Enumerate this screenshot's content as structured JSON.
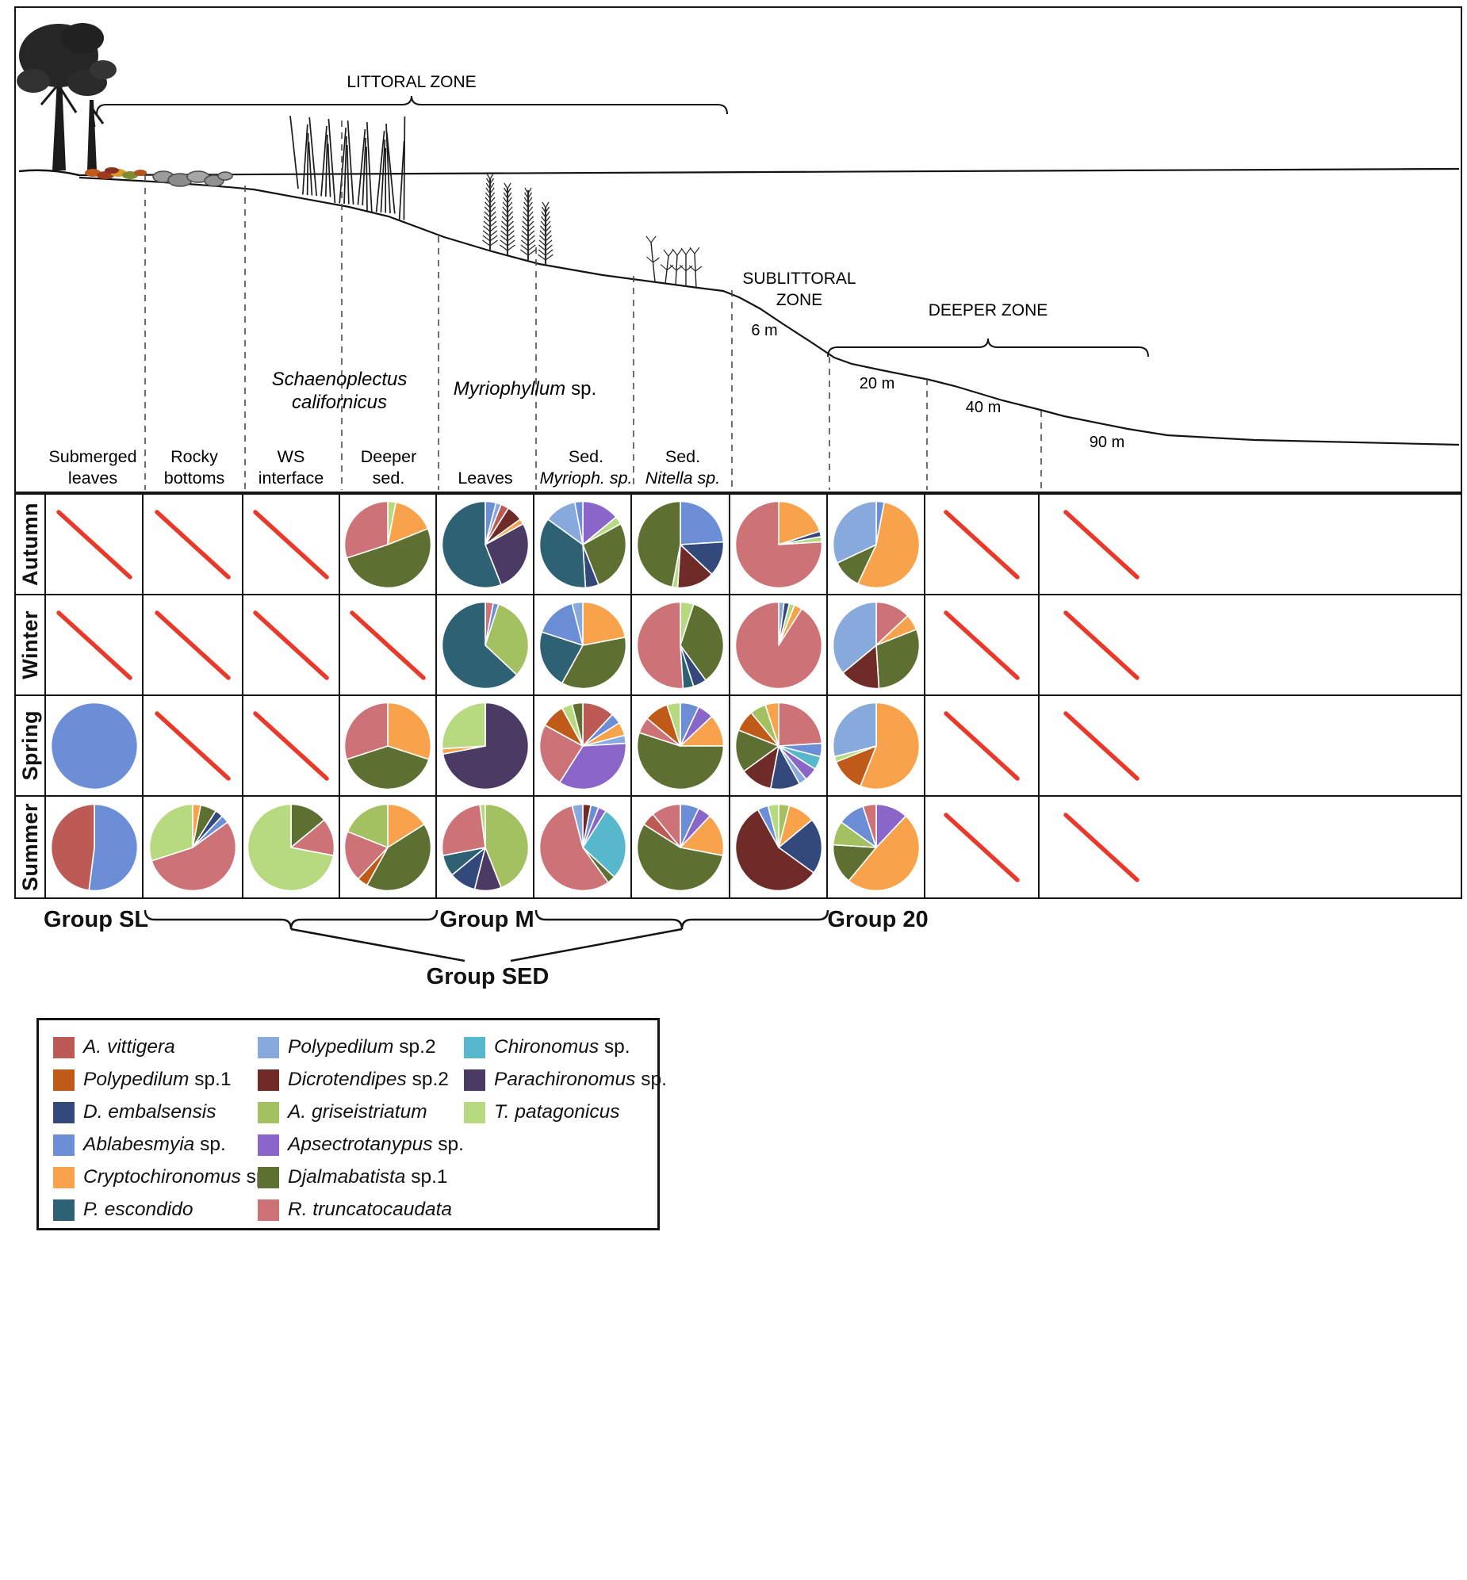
{
  "diagram": {
    "zones": {
      "littoral": "LITTORAL ZONE",
      "sublittoral_1": "SUBLITTORAL",
      "sublittoral_2": "ZONE",
      "deeper": "DEEPER ZONE"
    },
    "depths": {
      "d6": "6 m",
      "d20": "20 m",
      "d40": "40 m",
      "d90": "90 m"
    },
    "plants": {
      "schaenoplectus_1": "Schaenoplectus",
      "schaenoplectus_2": "californicus",
      "myriophyllum": "Myriophyllum",
      "myriophyllum_suffix": "sp."
    },
    "column_headers": [
      {
        "lines": [
          {
            "text": "Submerged"
          },
          {
            "text": "leaves"
          }
        ]
      },
      {
        "lines": [
          {
            "text": "Rocky"
          },
          {
            "text": "bottoms"
          }
        ]
      },
      {
        "lines": [
          {
            "text": "WS"
          },
          {
            "text": "interface"
          }
        ]
      },
      {
        "lines": [
          {
            "text": "Deeper"
          },
          {
            "text": "sed."
          }
        ]
      },
      {
        "lines": [
          {
            "text": "Leaves"
          }
        ]
      },
      {
        "lines": [
          {
            "text": "Sed."
          },
          {
            "text": "Myrioph. sp.",
            "italic": true
          }
        ]
      },
      {
        "lines": [
          {
            "text": "Sed."
          },
          {
            "text": "Nitella sp.",
            "italic": true
          }
        ]
      }
    ]
  },
  "groups": {
    "sl": "Group SL",
    "m": "Group M",
    "g20": "Group 20",
    "sed": "Group SED"
  },
  "colors": {
    "no_data_slash": "#e8392a"
  },
  "species_colors": {
    "AV": "#bc5a56",
    "P1": "#c05a18",
    "DE": "#33497c",
    "AB": "#6b8ed6",
    "CR": "#f9a24c",
    "PE": "#2d6173",
    "P2": "#87a9dc",
    "DI": "#6f2b27",
    "AG": "#a3c161",
    "AP": "#8a66c9",
    "DJ": "#5d7031",
    "RT": "#cd7378",
    "CH": "#57b7cd",
    "PA": "#4b3a64",
    "TP": "#b7da81"
  },
  "legend": {
    "columns": [
      [
        {
          "key": "AV",
          "name": "A. vittigera",
          "suffix": ""
        },
        {
          "key": "P1",
          "name": "Polypedilum",
          "suffix": "sp.1"
        },
        {
          "key": "DE",
          "name": "D. embalsensis",
          "suffix": ""
        },
        {
          "key": "AB",
          "name": "Ablabesmyia",
          "suffix": "sp."
        },
        {
          "key": "CR",
          "name": "Cryptochironomus",
          "suffix": "sp."
        },
        {
          "key": "PE",
          "name": "P. escondido",
          "suffix": ""
        }
      ],
      [
        {
          "key": "P2",
          "name": "Polypedilum",
          "suffix": "sp.2"
        },
        {
          "key": "DI",
          "name": "Dicrotendipes",
          "suffix": "sp.2"
        },
        {
          "key": "AG",
          "name": "A. griseistriatum",
          "suffix": ""
        },
        {
          "key": "AP",
          "name": "Apsectrotanypus",
          "suffix": "sp."
        },
        {
          "key": "DJ",
          "name": "Djalmabatista",
          "suffix": "sp.1"
        },
        {
          "key": "RT",
          "name": "R. truncatocaudata",
          "suffix": ""
        }
      ],
      [
        {
          "key": "CH",
          "name": "Chironomus",
          "suffix": "sp."
        },
        {
          "key": "PA",
          "name": "Parachironomus",
          "suffix": "sp."
        },
        {
          "key": "TP",
          "name": "T. patagonicus",
          "suffix": ""
        }
      ]
    ]
  },
  "chart_data": {
    "type": "pie",
    "legend_position": "bottom-left",
    "columns": [
      "Submerged leaves",
      "Rocky bottoms",
      "WS interface",
      "Deeper sed.",
      "Leaves",
      "Sed. Myrioph. sp.",
      "Sed. Nitella sp.",
      "",
      "",
      "",
      ""
    ],
    "rows": [
      {
        "season": "Autumn",
        "cells": [
          {
            "no_data": true
          },
          {
            "no_data": true
          },
          {
            "no_data": true
          },
          {
            "slices": [
              [
                "TP",
                3
              ],
              [
                "CR",
                16
              ],
              [
                "DJ",
                51
              ],
              [
                "RT",
                30
              ]
            ]
          },
          {
            "slices": [
              [
                "AB",
                4
              ],
              [
                "P2",
                2
              ],
              [
                "AV",
                3
              ],
              [
                "DI",
                6
              ],
              [
                "CR",
                2
              ],
              [
                "PA",
                27
              ],
              [
                "PE",
                56
              ]
            ]
          },
          {
            "slices": [
              [
                "AP",
                14
              ],
              [
                "TP",
                3
              ],
              [
                "DJ",
                27
              ],
              [
                "DE",
                5
              ],
              [
                "PE",
                36
              ],
              [
                "P2",
                12
              ],
              [
                "AB",
                3
              ]
            ]
          },
          {
            "slices": [
              [
                "AB",
                24
              ],
              [
                "DE",
                13
              ],
              [
                "DI",
                14
              ],
              [
                "TP",
                2
              ],
              [
                "DJ",
                47
              ]
            ]
          },
          {
            "slices": [
              [
                "CR",
                20
              ],
              [
                "DE",
                2
              ],
              [
                "TP",
                2
              ],
              [
                "RT",
                76
              ]
            ]
          },
          {
            "slices": [
              [
                "AB",
                3
              ],
              [
                "CR",
                54
              ],
              [
                "DJ",
                11
              ],
              [
                "P2",
                32
              ]
            ]
          },
          {
            "no_data": true
          },
          {
            "no_data": true
          }
        ]
      },
      {
        "season": "Winter",
        "cells": [
          {
            "no_data": true
          },
          {
            "no_data": true
          },
          {
            "no_data": true
          },
          {
            "no_data": true
          },
          {
            "slices": [
              [
                "RT",
                3
              ],
              [
                "AB",
                2
              ],
              [
                "AG",
                32
              ],
              [
                "PE",
                63
              ]
            ]
          },
          {
            "slices": [
              [
                "CR",
                22
              ],
              [
                "DJ",
                36
              ],
              [
                "PE",
                22
              ],
              [
                "AB",
                16
              ],
              [
                "P2",
                4
              ]
            ]
          },
          {
            "slices": [
              [
                "TP",
                5
              ],
              [
                "DJ",
                35
              ],
              [
                "DE",
                5
              ],
              [
                "PE",
                4
              ],
              [
                "RT",
                51
              ]
            ]
          },
          {
            "slices": [
              [
                "P2",
                2
              ],
              [
                "DE",
                2
              ],
              [
                "TP",
                2
              ],
              [
                "CR",
                3
              ],
              [
                "RT",
                91
              ]
            ]
          },
          {
            "slices": [
              [
                "RT",
                13
              ],
              [
                "CR",
                6
              ],
              [
                "DJ",
                30
              ],
              [
                "DI",
                15
              ],
              [
                "P2",
                36
              ]
            ]
          },
          {
            "no_data": true
          },
          {
            "no_data": true
          }
        ]
      },
      {
        "season": "Spring",
        "cells": [
          {
            "slices": [
              [
                "AB",
                100
              ]
            ]
          },
          {
            "no_data": true
          },
          {
            "no_data": true
          },
          {
            "slices": [
              [
                "CR",
                30
              ],
              [
                "DJ",
                40
              ],
              [
                "RT",
                30
              ]
            ]
          },
          {
            "slices": [
              [
                "PA",
                72
              ],
              [
                "CR",
                2
              ],
              [
                "TP",
                26
              ]
            ]
          },
          {
            "slices": [
              [
                "AV",
                12
              ],
              [
                "AB",
                4
              ],
              [
                "CR",
                5
              ],
              [
                "P2",
                3
              ],
              [
                "AP",
                35
              ],
              [
                "RT",
                24
              ],
              [
                "P1",
                9
              ],
              [
                "TP",
                4
              ],
              [
                "DJ",
                4
              ]
            ]
          },
          {
            "slices": [
              [
                "AB",
                7
              ],
              [
                "AP",
                6
              ],
              [
                "CR",
                12
              ],
              [
                "DJ",
                55
              ],
              [
                "RT",
                6
              ],
              [
                "P1",
                9
              ],
              [
                "TP",
                5
              ]
            ]
          },
          {
            "slices": [
              [
                "RT",
                24
              ],
              [
                "AB",
                5
              ],
              [
                "CH",
                5
              ],
              [
                "AP",
                5
              ],
              [
                "P2",
                3
              ],
              [
                "DE",
                11
              ],
              [
                "DI",
                12
              ],
              [
                "DJ",
                16
              ],
              [
                "P1",
                8
              ],
              [
                "AG",
                6
              ],
              [
                "CR",
                5
              ]
            ]
          },
          {
            "slices": [
              [
                "CR",
                56
              ],
              [
                "P1",
                13
              ],
              [
                "TP",
                2
              ],
              [
                "P2",
                29
              ]
            ]
          },
          {
            "no_data": true
          },
          {
            "no_data": true
          }
        ]
      },
      {
        "season": "Summer",
        "cells": [
          {
            "slices": [
              [
                "AB",
                52
              ],
              [
                "AV",
                48
              ]
            ]
          },
          {
            "slices": [
              [
                "CR",
                3
              ],
              [
                "DJ",
                6
              ],
              [
                "DE",
                3
              ],
              [
                "AB",
                3
              ],
              [
                "RT",
                55
              ],
              [
                "TP",
                30
              ]
            ]
          },
          {
            "slices": [
              [
                "DJ",
                14
              ],
              [
                "RT",
                14
              ],
              [
                "TP",
                72
              ]
            ]
          },
          {
            "slices": [
              [
                "CR",
                16
              ],
              [
                "DJ",
                42
              ],
              [
                "P1",
                4
              ],
              [
                "RT",
                19
              ],
              [
                "AG",
                19
              ]
            ]
          },
          {
            "slices": [
              [
                "AG",
                44
              ],
              [
                "PA",
                10
              ],
              [
                "DE",
                10
              ],
              [
                "PE",
                8
              ],
              [
                "RT",
                26
              ],
              [
                "TP",
                2
              ]
            ]
          },
          {
            "slices": [
              [
                "DI",
                3
              ],
              [
                "AB",
                3
              ],
              [
                "AP",
                3
              ],
              [
                "CH",
                28
              ],
              [
                "DJ",
                3
              ],
              [
                "RT",
                56
              ],
              [
                "P2",
                4
              ]
            ]
          },
          {
            "slices": [
              [
                "AB",
                7
              ],
              [
                "AP",
                5
              ],
              [
                "CR",
                16
              ],
              [
                "DJ",
                56
              ],
              [
                "AV",
                5
              ],
              [
                "RT",
                11
              ]
            ]
          },
          {
            "slices": [
              [
                "AG",
                4
              ],
              [
                "CR",
                10
              ],
              [
                "DE",
                21
              ],
              [
                "DI",
                57
              ],
              [
                "AB",
                4
              ],
              [
                "TP",
                4
              ]
            ]
          },
          {
            "slices": [
              [
                "AP",
                12
              ],
              [
                "CR",
                49
              ],
              [
                "DJ",
                15
              ],
              [
                "AG",
                9
              ],
              [
                "AB",
                10
              ],
              [
                "RT",
                5
              ]
            ]
          },
          {
            "no_data": true
          },
          {
            "no_data": true
          }
        ]
      }
    ]
  }
}
